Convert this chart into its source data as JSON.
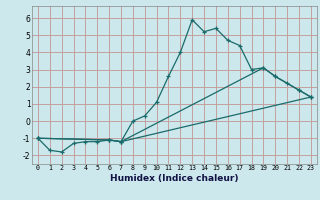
{
  "xlabel": "Humidex (Indice chaleur)",
  "background_color": "#cce8ec",
  "grid_color": "#c4a0a0",
  "line_color": "#1a6b6b",
  "xlim": [
    -0.5,
    23.5
  ],
  "ylim": [
    -2.5,
    6.7
  ],
  "xticks": [
    0,
    1,
    2,
    3,
    4,
    5,
    6,
    7,
    8,
    9,
    10,
    11,
    12,
    13,
    14,
    15,
    16,
    17,
    18,
    19,
    20,
    21,
    22,
    23
  ],
  "yticks": [
    -2,
    -1,
    0,
    1,
    2,
    3,
    4,
    5,
    6
  ],
  "line1_x": [
    0,
    1,
    2,
    3,
    4,
    5,
    6,
    7,
    8,
    9,
    10,
    11,
    12,
    13,
    14,
    15,
    16,
    17,
    18,
    19,
    20,
    21,
    22,
    23
  ],
  "line1_y": [
    -1.0,
    -1.7,
    -1.8,
    -1.3,
    -1.2,
    -1.2,
    -1.1,
    -1.2,
    0.0,
    0.3,
    1.1,
    2.6,
    4.0,
    5.9,
    5.2,
    5.4,
    4.7,
    4.4,
    3.0,
    3.1,
    2.6,
    2.2,
    1.8,
    1.4
  ],
  "line2_x": [
    0,
    6,
    7,
    19,
    20,
    22,
    23
  ],
  "line2_y": [
    -1.0,
    -1.1,
    -1.2,
    3.1,
    2.6,
    1.8,
    1.4
  ],
  "line3_x": [
    0,
    6,
    7,
    23
  ],
  "line3_y": [
    -1.0,
    -1.1,
    -1.2,
    1.4
  ]
}
